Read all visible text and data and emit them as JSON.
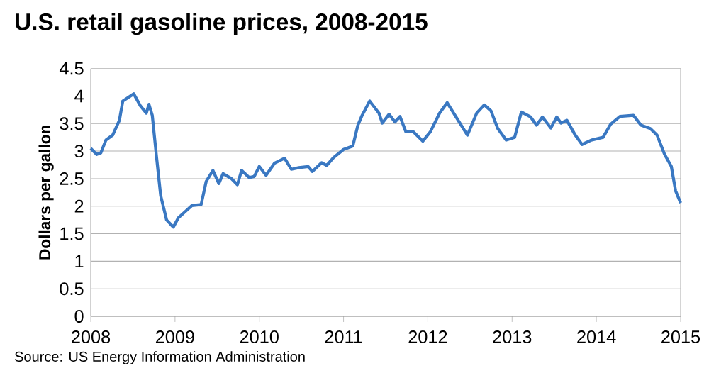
{
  "chart_data": {
    "type": "line",
    "title": "U.S. retail gasoline prices, 2008-2015",
    "ylabel": "Dollars per gallon",
    "annotations": [
      "Source: US Energy Information Administration"
    ],
    "x": [
      2008.0,
      2008.07,
      2008.12,
      2008.18,
      2008.26,
      2008.34,
      2008.38,
      2008.51,
      2008.59,
      2008.66,
      2008.69,
      2008.73,
      2008.78,
      2008.83,
      2008.9,
      2008.98,
      2009.04,
      2009.12,
      2009.2,
      2009.31,
      2009.37,
      2009.45,
      2009.52,
      2009.57,
      2009.67,
      2009.74,
      2009.79,
      2009.88,
      2009.94,
      2010.0,
      2010.08,
      2010.18,
      2010.3,
      2010.38,
      2010.47,
      2010.58,
      2010.63,
      2010.74,
      2010.8,
      2010.88,
      2011.0,
      2011.11,
      2011.17,
      2011.22,
      2011.31,
      2011.42,
      2011.46,
      2011.54,
      2011.61,
      2011.67,
      2011.74,
      2011.83,
      2011.94,
      2012.03,
      2012.14,
      2012.23,
      2012.36,
      2012.47,
      2012.58,
      2012.67,
      2012.75,
      2012.83,
      2012.93,
      2013.03,
      2013.11,
      2013.22,
      2013.29,
      2013.36,
      2013.46,
      2013.53,
      2013.58,
      2013.65,
      2013.75,
      2013.83,
      2013.94,
      2014.08,
      2014.17,
      2014.28,
      2014.44,
      2014.53,
      2014.64,
      2014.72,
      2014.81,
      2014.89,
      2014.94,
      2015.0
    ],
    "series": [
      {
        "color": "#3a78c2",
        "values": [
          3.05,
          2.94,
          2.97,
          3.2,
          3.29,
          3.56,
          3.91,
          4.04,
          3.82,
          3.69,
          3.85,
          3.65,
          2.9,
          2.19,
          1.75,
          1.62,
          1.79,
          1.9,
          2.01,
          2.03,
          2.45,
          2.65,
          2.41,
          2.59,
          2.5,
          2.39,
          2.65,
          2.52,
          2.54,
          2.72,
          2.56,
          2.78,
          2.87,
          2.67,
          2.7,
          2.72,
          2.63,
          2.79,
          2.74,
          2.88,
          3.03,
          3.09,
          3.47,
          3.65,
          3.91,
          3.69,
          3.51,
          3.67,
          3.53,
          3.63,
          3.35,
          3.35,
          3.18,
          3.35,
          3.69,
          3.88,
          3.56,
          3.29,
          3.69,
          3.84,
          3.73,
          3.41,
          3.2,
          3.25,
          3.71,
          3.62,
          3.47,
          3.62,
          3.42,
          3.62,
          3.51,
          3.56,
          3.29,
          3.12,
          3.2,
          3.25,
          3.49,
          3.63,
          3.65,
          3.47,
          3.41,
          3.29,
          2.94,
          2.72,
          2.28,
          2.06
        ]
      }
    ],
    "xlim": [
      2008,
      2015
    ],
    "xticks": [
      2008,
      2009,
      2010,
      2011,
      2012,
      2013,
      2014,
      2015
    ],
    "ylim": [
      0,
      4.5
    ],
    "yticks": [
      0,
      0.5,
      1,
      1.5,
      2,
      2.5,
      3,
      3.5,
      4,
      4.5
    ],
    "grid": "y",
    "marker": "none",
    "line_style": "solid"
  }
}
